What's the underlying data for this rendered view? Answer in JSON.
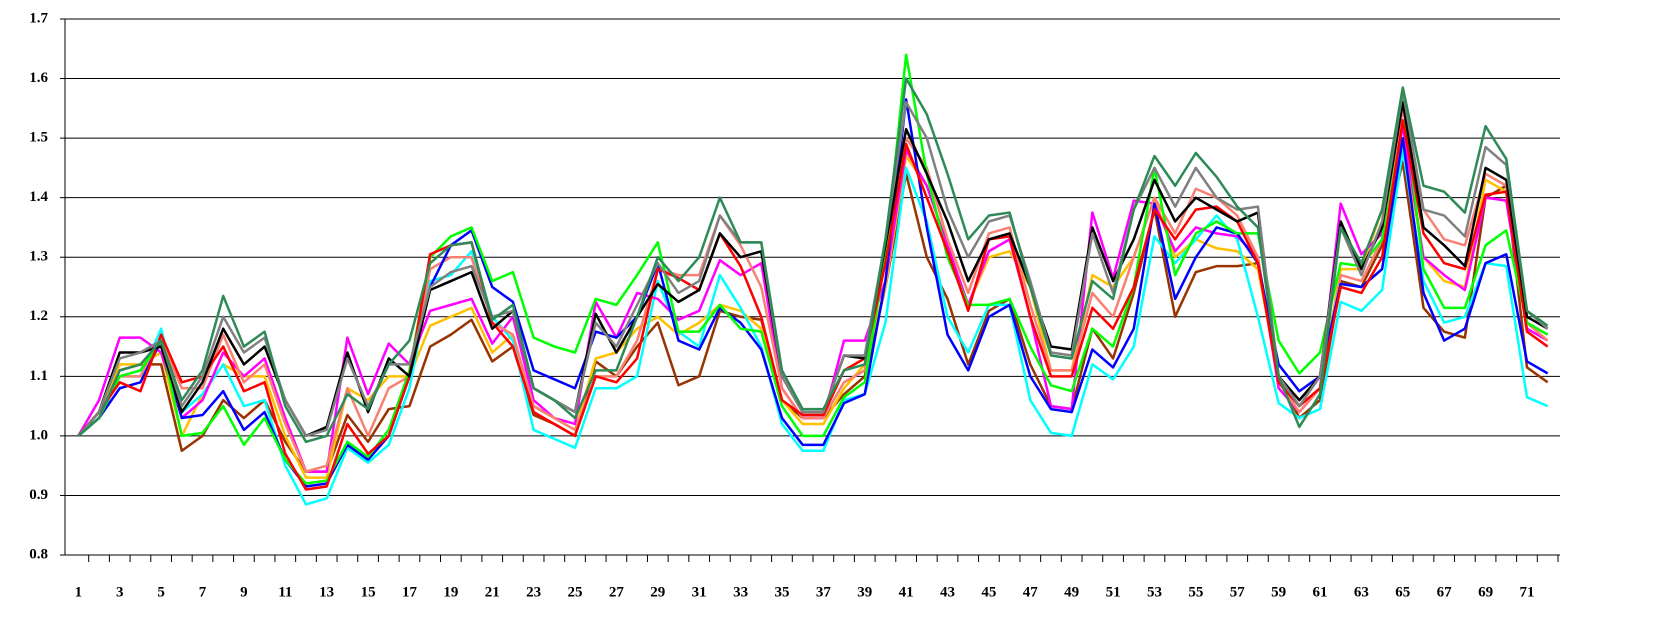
{
  "chart_data": {
    "type": "line",
    "categories": [
      1,
      null,
      3,
      null,
      5,
      null,
      7,
      null,
      9,
      null,
      11,
      null,
      13,
      null,
      15,
      null,
      17,
      null,
      19,
      null,
      21,
      null,
      23,
      null,
      25,
      null,
      27,
      null,
      29,
      null,
      31,
      null,
      33,
      null,
      35,
      null,
      37,
      null,
      39,
      null,
      41,
      null,
      43,
      null,
      45,
      null,
      47,
      null,
      49,
      null,
      51,
      null,
      53,
      null,
      55,
      null,
      57,
      null,
      59,
      null,
      61,
      null,
      63,
      null,
      65,
      null,
      67,
      null,
      69,
      null,
      71,
      null
    ],
    "ylim": [
      0.8,
      1.7
    ],
    "yticks": [
      0.8,
      0.9,
      {
        "value": 1,
        "label": "1.0"
      },
      1.1,
      1.2,
      1.3,
      1.4,
      1.5,
      1.6,
      1.7
    ],
    "grid": true,
    "series": [
      {
        "color": "#993300",
        "values": [
          1.0,
          1.04,
          1.11,
          1.12,
          1.12,
          0.975,
          1.0,
          1.06,
          1.03,
          1.06,
          0.99,
          0.94,
          0.94,
          1.035,
          0.99,
          1.045,
          1.05,
          1.15,
          1.17,
          1.195,
          1.125,
          1.15,
          1.035,
          1.02,
          1.0,
          1.125,
          1.1,
          1.15,
          1.19,
          1.085,
          1.1,
          1.21,
          1.2,
          1.195,
          1.06,
          1.03,
          1.03,
          1.07,
          1.1,
          1.25,
          1.44,
          1.3,
          1.23,
          1.12,
          1.21,
          1.23,
          1.12,
          1.05,
          1.045,
          1.18,
          1.13,
          1.24,
          1.38,
          1.2,
          1.275,
          1.285,
          1.285,
          1.29,
          1.1,
          1.03,
          1.06,
          1.26,
          1.25,
          1.32,
          1.46,
          1.215,
          1.175,
          1.165,
          1.4,
          1.42,
          1.115,
          1.09
        ]
      },
      {
        "color": "#ffc000",
        "values": [
          1.0,
          1.04,
          1.12,
          1.12,
          1.14,
          1.0,
          1.07,
          1.12,
          1.1,
          1.1,
          1.0,
          0.93,
          0.93,
          1.08,
          1.06,
          1.1,
          1.1,
          1.185,
          1.2,
          1.215,
          1.14,
          1.17,
          1.05,
          1.03,
          1.01,
          1.13,
          1.14,
          1.18,
          1.2,
          1.17,
          1.19,
          1.22,
          1.21,
          1.18,
          1.06,
          1.02,
          1.02,
          1.08,
          1.12,
          1.25,
          1.47,
          1.42,
          1.32,
          1.22,
          1.3,
          1.31,
          1.25,
          1.11,
          1.11,
          1.27,
          1.25,
          1.3,
          1.4,
          1.3,
          1.33,
          1.315,
          1.31,
          1.28,
          1.1,
          1.05,
          1.08,
          1.28,
          1.28,
          1.38,
          1.5,
          1.3,
          1.26,
          1.25,
          1.43,
          1.41,
          1.19,
          1.17
        ]
      },
      {
        "color": "#00ffff",
        "values": [
          1.0,
          1.03,
          1.1,
          1.1,
          1.18,
          1.04,
          1.07,
          1.12,
          1.05,
          1.06,
          0.95,
          0.885,
          0.895,
          0.98,
          0.955,
          0.985,
          1.08,
          1.26,
          1.27,
          1.31,
          1.2,
          1.16,
          1.01,
          0.995,
          0.98,
          1.08,
          1.08,
          1.1,
          1.26,
          1.175,
          1.15,
          1.27,
          1.215,
          1.15,
          1.02,
          0.975,
          0.975,
          1.06,
          1.07,
          1.19,
          1.45,
          1.36,
          1.2,
          1.14,
          1.22,
          1.22,
          1.06,
          1.005,
          1.0,
          1.12,
          1.095,
          1.15,
          1.335,
          1.29,
          1.33,
          1.37,
          1.33,
          1.2,
          1.055,
          1.03,
          1.045,
          1.225,
          1.21,
          1.245,
          1.48,
          1.26,
          1.19,
          1.2,
          1.29,
          1.285,
          1.065,
          1.05
        ]
      },
      {
        "color": "#ff00ff",
        "values": [
          1.0,
          1.06,
          1.165,
          1.165,
          1.14,
          1.03,
          1.06,
          1.14,
          1.1,
          1.13,
          1.03,
          0.94,
          0.94,
          1.165,
          1.07,
          1.155,
          1.12,
          1.21,
          1.22,
          1.23,
          1.155,
          1.2,
          1.06,
          1.03,
          1.02,
          1.225,
          1.165,
          1.24,
          1.23,
          1.195,
          1.21,
          1.295,
          1.27,
          1.29,
          1.08,
          1.03,
          1.03,
          1.16,
          1.16,
          1.26,
          1.48,
          1.42,
          1.32,
          1.22,
          1.31,
          1.33,
          1.2,
          1.05,
          1.045,
          1.375,
          1.265,
          1.395,
          1.39,
          1.31,
          1.35,
          1.34,
          1.335,
          1.3,
          1.08,
          1.04,
          1.08,
          1.39,
          1.305,
          1.34,
          1.52,
          1.3,
          1.27,
          1.245,
          1.4,
          1.395,
          1.18,
          1.16
        ]
      },
      {
        "color": "#fa8072",
        "values": [
          1.0,
          1.04,
          1.1,
          1.1,
          1.16,
          1.08,
          1.08,
          1.17,
          1.09,
          1.12,
          1.02,
          0.94,
          0.95,
          1.08,
          1.0,
          1.08,
          1.1,
          1.28,
          1.3,
          1.3,
          1.19,
          1.17,
          1.05,
          1.03,
          1.01,
          1.1,
          1.1,
          1.16,
          1.28,
          1.27,
          1.27,
          1.37,
          1.32,
          1.25,
          1.08,
          1.03,
          1.03,
          1.09,
          1.11,
          1.3,
          1.5,
          1.45,
          1.33,
          1.24,
          1.34,
          1.35,
          1.22,
          1.11,
          1.11,
          1.24,
          1.2,
          1.3,
          1.4,
          1.34,
          1.415,
          1.4,
          1.37,
          1.3,
          1.09,
          1.04,
          1.08,
          1.27,
          1.26,
          1.33,
          1.55,
          1.38,
          1.33,
          1.32,
          1.44,
          1.42,
          1.19,
          1.16
        ]
      },
      {
        "color": "#0000ff",
        "values": [
          1.0,
          1.03,
          1.08,
          1.09,
          1.16,
          1.03,
          1.035,
          1.075,
          1.01,
          1.04,
          0.96,
          0.915,
          0.92,
          0.985,
          0.96,
          1.0,
          1.1,
          1.25,
          1.32,
          1.345,
          1.25,
          1.225,
          1.11,
          1.095,
          1.08,
          1.175,
          1.165,
          1.2,
          1.29,
          1.16,
          1.145,
          1.215,
          1.19,
          1.145,
          1.03,
          0.985,
          0.985,
          1.055,
          1.07,
          1.26,
          1.565,
          1.35,
          1.17,
          1.11,
          1.2,
          1.22,
          1.1,
          1.045,
          1.04,
          1.145,
          1.115,
          1.18,
          1.39,
          1.23,
          1.3,
          1.35,
          1.34,
          1.29,
          1.12,
          1.075,
          1.1,
          1.255,
          1.25,
          1.28,
          1.5,
          1.24,
          1.16,
          1.18,
          1.29,
          1.305,
          1.125,
          1.105
        ]
      },
      {
        "color": "#00ff00",
        "values": [
          1.0,
          1.03,
          1.1,
          1.11,
          1.16,
          1.0,
          1.005,
          1.05,
          0.985,
          1.03,
          0.96,
          0.92,
          0.925,
          0.99,
          0.965,
          1.01,
          1.11,
          1.3,
          1.335,
          1.35,
          1.26,
          1.275,
          1.165,
          1.15,
          1.14,
          1.23,
          1.22,
          1.27,
          1.325,
          1.175,
          1.175,
          1.22,
          1.18,
          1.175,
          1.05,
          1.0,
          1.0,
          1.065,
          1.09,
          1.3,
          1.64,
          1.44,
          1.3,
          1.22,
          1.22,
          1.23,
          1.15,
          1.085,
          1.075,
          1.18,
          1.15,
          1.25,
          1.45,
          1.27,
          1.34,
          1.36,
          1.34,
          1.34,
          1.16,
          1.105,
          1.14,
          1.29,
          1.285,
          1.33,
          1.57,
          1.28,
          1.215,
          1.215,
          1.32,
          1.345,
          1.19,
          1.17
        ]
      },
      {
        "color": "#ff0000",
        "values": [
          1.0,
          1.04,
          1.09,
          1.075,
          1.17,
          1.09,
          1.1,
          1.15,
          1.075,
          1.09,
          0.97,
          0.91,
          0.915,
          1.02,
          0.97,
          1.0,
          1.1,
          1.305,
          1.32,
          1.325,
          1.19,
          1.15,
          1.04,
          1.02,
          1.0,
          1.1,
          1.09,
          1.13,
          1.28,
          1.265,
          1.245,
          1.34,
          1.285,
          1.2,
          1.06,
          1.035,
          1.035,
          1.11,
          1.13,
          1.29,
          1.49,
          1.4,
          1.31,
          1.21,
          1.33,
          1.335,
          1.2,
          1.1,
          1.1,
          1.215,
          1.18,
          1.25,
          1.38,
          1.33,
          1.38,
          1.385,
          1.36,
          1.29,
          1.09,
          1.05,
          1.08,
          1.25,
          1.24,
          1.3,
          1.53,
          1.34,
          1.29,
          1.28,
          1.405,
          1.41,
          1.175,
          1.15
        ]
      },
      {
        "color": "#000000",
        "values": [
          1.0,
          1.04,
          1.14,
          1.14,
          1.15,
          1.04,
          1.09,
          1.18,
          1.12,
          1.15,
          1.06,
          1.0,
          1.015,
          1.14,
          1.04,
          1.13,
          1.1,
          1.245,
          1.26,
          1.275,
          1.18,
          1.21,
          1.08,
          1.06,
          1.04,
          1.205,
          1.14,
          1.2,
          1.255,
          1.225,
          1.245,
          1.34,
          1.3,
          1.31,
          1.1,
          1.04,
          1.04,
          1.135,
          1.13,
          1.32,
          1.515,
          1.44,
          1.36,
          1.26,
          1.33,
          1.34,
          1.25,
          1.15,
          1.145,
          1.35,
          1.26,
          1.33,
          1.43,
          1.36,
          1.4,
          1.38,
          1.36,
          1.375,
          1.1,
          1.06,
          1.1,
          1.36,
          1.28,
          1.35,
          1.56,
          1.35,
          1.32,
          1.285,
          1.45,
          1.43,
          1.2,
          1.18
        ]
      },
      {
        "color": "#808080",
        "values": [
          1.0,
          1.04,
          1.13,
          1.14,
          1.16,
          1.05,
          1.1,
          1.2,
          1.14,
          1.165,
          1.06,
          1.0,
          1.01,
          1.13,
          1.05,
          1.12,
          1.12,
          1.25,
          1.275,
          1.285,
          1.2,
          1.21,
          1.08,
          1.06,
          1.04,
          1.19,
          1.15,
          1.22,
          1.29,
          1.24,
          1.26,
          1.37,
          1.325,
          1.325,
          1.1,
          1.04,
          1.04,
          1.135,
          1.135,
          1.33,
          1.56,
          1.5,
          1.38,
          1.3,
          1.36,
          1.37,
          1.26,
          1.14,
          1.135,
          1.34,
          1.24,
          1.38,
          1.45,
          1.385,
          1.45,
          1.4,
          1.38,
          1.385,
          1.1,
          1.05,
          1.1,
          1.35,
          1.27,
          1.36,
          1.58,
          1.38,
          1.37,
          1.335,
          1.485,
          1.455,
          1.21,
          1.18
        ]
      },
      {
        "color": "#2e8b57",
        "values": [
          1.0,
          1.03,
          1.11,
          1.12,
          1.16,
          1.06,
          1.11,
          1.235,
          1.15,
          1.175,
          1.05,
          0.99,
          1.0,
          1.07,
          1.045,
          1.12,
          1.16,
          1.29,
          1.32,
          1.325,
          1.195,
          1.22,
          1.08,
          1.06,
          1.03,
          1.11,
          1.11,
          1.2,
          1.3,
          1.26,
          1.3,
          1.4,
          1.325,
          1.325,
          1.11,
          1.045,
          1.045,
          1.11,
          1.12,
          1.33,
          1.6,
          1.54,
          1.44,
          1.33,
          1.37,
          1.375,
          1.25,
          1.135,
          1.13,
          1.26,
          1.23,
          1.38,
          1.47,
          1.42,
          1.475,
          1.435,
          1.385,
          1.35,
          1.1,
          1.015,
          1.07,
          1.35,
          1.29,
          1.38,
          1.585,
          1.42,
          1.41,
          1.375,
          1.52,
          1.465,
          1.21,
          1.185
        ]
      }
    ]
  }
}
